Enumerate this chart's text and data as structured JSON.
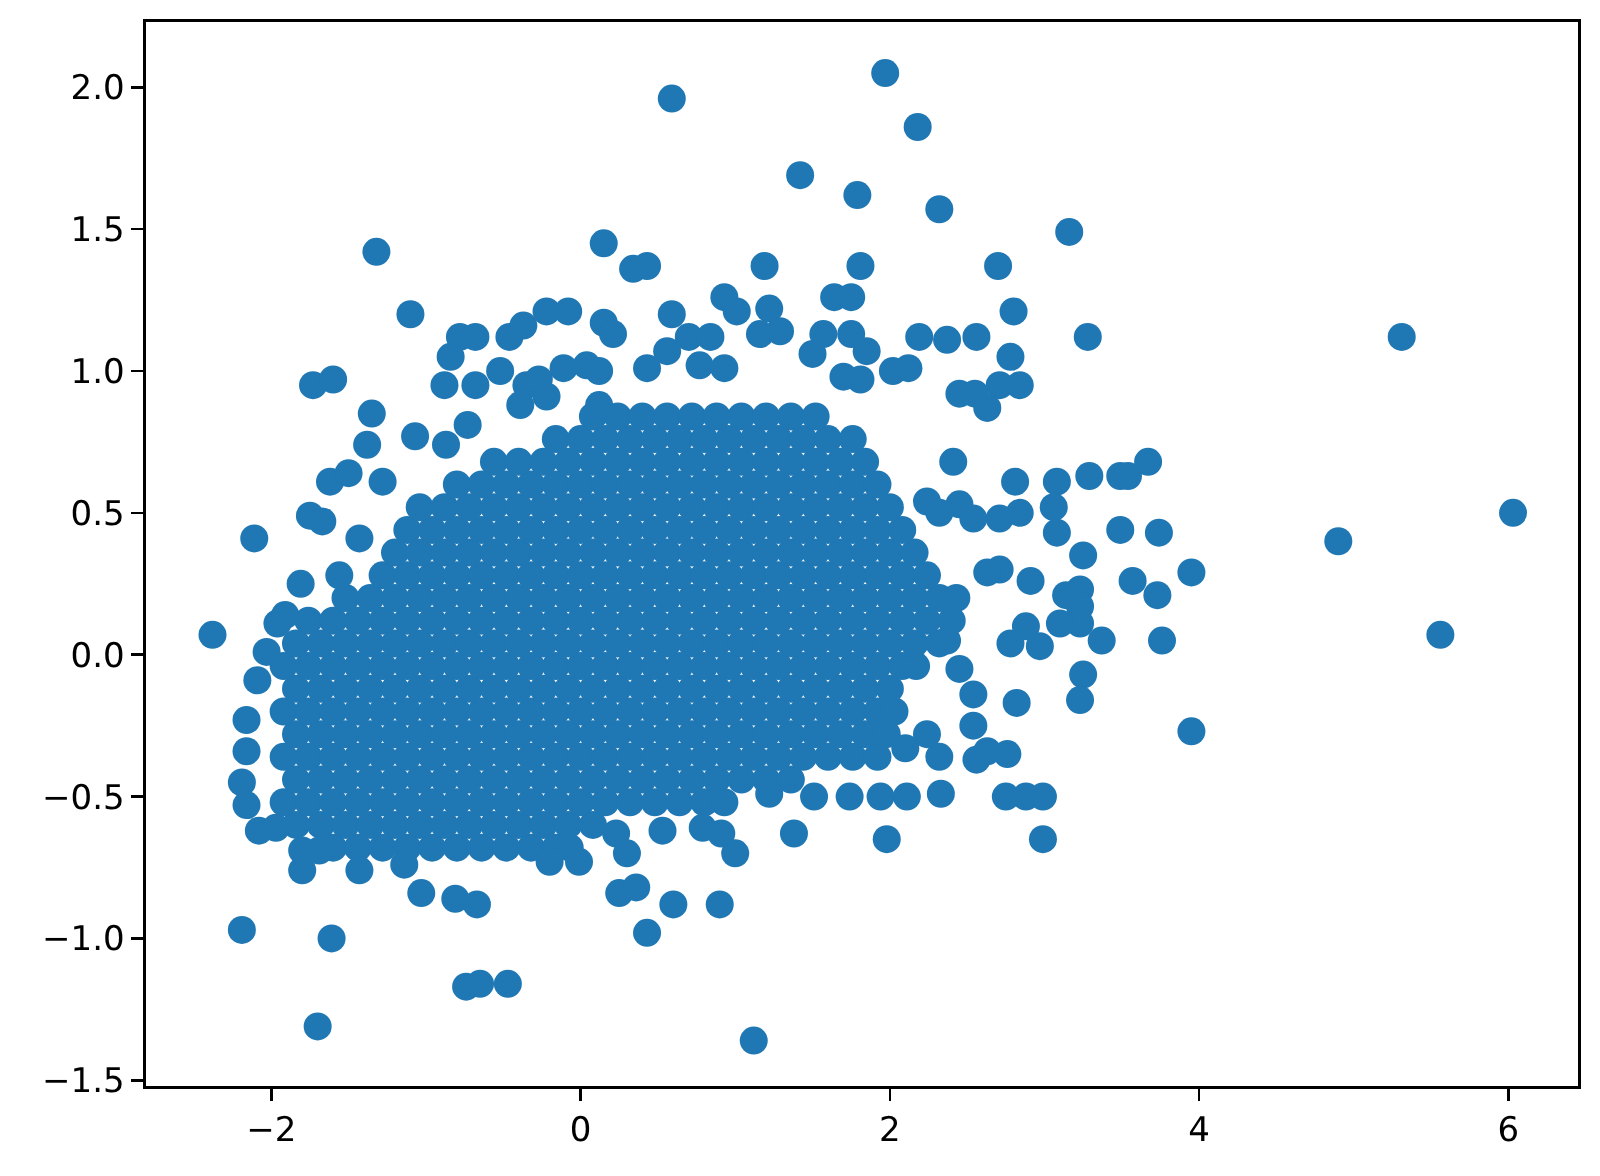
{
  "chart_data": {
    "type": "scatter",
    "color": "#1f77b4",
    "marker": "circle",
    "grid": false,
    "xlim": [
      -2.81,
      6.45
    ],
    "ylim": [
      -1.52,
      2.23
    ],
    "xticks": [
      {
        "value": -2,
        "label": "−2"
      },
      0,
      2,
      4,
      6
    ],
    "yticks": [
      {
        "value": -1.5,
        "label": "−1.5"
      },
      {
        "value": -1,
        "label": "−1.0"
      },
      {
        "value": -0.5,
        "label": "−0.5"
      },
      {
        "value": 0,
        "label": "0.0"
      },
      0.5,
      {
        "value": 1,
        "label": "1.0"
      },
      1.5,
      {
        "value": 2,
        "label": "2.0"
      }
    ],
    "x": [
      -1.6,
      -1.44,
      -1.28,
      -1.12,
      -0.96,
      -0.8,
      -0.64,
      -0.48,
      -0.32,
      -0.16,
      -0.07,
      -1.84,
      -1.68,
      -1.52,
      -1.36,
      -1.2,
      -1.04,
      -0.88,
      -0.72,
      -0.56,
      -0.4,
      -0.24,
      -0.08,
      0.08,
      -1.92,
      -1.76,
      -1.6,
      -1.44,
      -1.28,
      -1.12,
      -0.96,
      -0.8,
      -0.64,
      -0.48,
      -0.32,
      -0.16,
      0,
      0.16,
      0.32,
      0.48,
      0.64,
      0.8,
      0.93,
      -1.84,
      -1.68,
      -1.52,
      -1.36,
      -1.2,
      -1.04,
      -0.88,
      -0.72,
      -0.56,
      -0.4,
      -0.24,
      -0.08,
      0.08,
      0.24,
      0.4,
      0.56,
      0.72,
      0.88,
      1.04,
      1.2,
      1.36,
      -1.92,
      -1.76,
      -1.6,
      -1.44,
      -1.28,
      -1.12,
      -0.96,
      -0.8,
      -0.64,
      -0.48,
      -0.32,
      -0.16,
      0,
      0.16,
      0.32,
      0.48,
      0.64,
      0.8,
      0.96,
      1.12,
      1.28,
      1.44,
      1.6,
      1.76,
      1.92,
      -1.84,
      -1.68,
      -1.52,
      -1.36,
      -1.2,
      -1.04,
      -0.88,
      -0.72,
      -0.56,
      -0.4,
      -0.24,
      -0.08,
      0.08,
      0.24,
      0.4,
      0.56,
      0.72,
      0.88,
      1.04,
      1.2,
      1.36,
      1.52,
      1.68,
      1.84,
      1.98,
      -1.92,
      -1.76,
      -1.6,
      -1.44,
      -1.28,
      -1.12,
      -0.96,
      -0.8,
      -0.64,
      -0.48,
      -0.32,
      -0.16,
      0,
      0.16,
      0.32,
      0.48,
      0.64,
      0.8,
      0.96,
      1.12,
      1.28,
      1.44,
      1.6,
      1.76,
      1.92,
      2.03,
      -1.84,
      -1.68,
      -1.52,
      -1.36,
      -1.2,
      -1.04,
      -0.88,
      -0.72,
      -0.56,
      -0.4,
      -0.24,
      -0.08,
      0.08,
      0.24,
      0.4,
      0.56,
      0.72,
      0.88,
      1.04,
      1.2,
      1.36,
      1.52,
      1.68,
      1.84,
      2,
      -1.92,
      -1.76,
      -1.6,
      -1.44,
      -1.28,
      -1.12,
      -0.96,
      -0.8,
      -0.64,
      -0.48,
      -0.32,
      -0.16,
      0,
      0.16,
      0.32,
      0.48,
      0.64,
      0.8,
      0.96,
      1.12,
      1.28,
      1.44,
      1.6,
      1.76,
      1.92,
      2.08,
      2.17,
      -1.84,
      -1.68,
      -1.52,
      -1.36,
      -1.2,
      -1.04,
      -0.88,
      -0.72,
      -0.56,
      -0.4,
      -0.24,
      -0.08,
      0.08,
      0.24,
      0.4,
      0.56,
      0.72,
      0.88,
      1.04,
      1.2,
      1.36,
      1.52,
      1.68,
      1.84,
      2,
      2.16,
      2.32,
      -1.76,
      -1.6,
      -1.44,
      -1.28,
      -1.12,
      -0.96,
      -0.8,
      -0.64,
      -0.48,
      -0.32,
      -0.16,
      0,
      0.16,
      0.32,
      0.48,
      0.64,
      0.8,
      0.96,
      1.12,
      1.28,
      1.44,
      1.6,
      1.76,
      1.92,
      2.08,
      2.24,
      2.4,
      -1.52,
      -1.36,
      -1.2,
      -1.04,
      -0.88,
      -0.72,
      -0.56,
      -0.4,
      -0.24,
      -0.08,
      0.08,
      0.24,
      0.4,
      0.56,
      0.72,
      0.88,
      1.04,
      1.2,
      1.36,
      1.52,
      1.68,
      1.84,
      2,
      2.16,
      2.32,
      2.43,
      -1.28,
      -1.12,
      -0.96,
      -0.8,
      -0.64,
      -0.48,
      -0.32,
      -0.16,
      0,
      0.16,
      0.32,
      0.48,
      0.64,
      0.8,
      0.96,
      1.12,
      1.28,
      1.44,
      1.6,
      1.76,
      1.92,
      2.08,
      2.24,
      -1.2,
      -1.04,
      -0.88,
      -0.72,
      -0.56,
      -0.4,
      -0.24,
      -0.08,
      0.08,
      0.24,
      0.4,
      0.56,
      0.72,
      0.88,
      1.04,
      1.2,
      1.36,
      1.52,
      1.68,
      1.84,
      2,
      2.16,
      -1.12,
      -0.96,
      -0.8,
      -0.64,
      -0.48,
      -0.32,
      -0.16,
      0,
      0.16,
      0.32,
      0.48,
      0.64,
      0.8,
      0.96,
      1.12,
      1.28,
      1.44,
      1.6,
      1.76,
      1.92,
      2.08,
      -1.04,
      -0.88,
      -0.72,
      -0.56,
      -0.4,
      -0.24,
      -0.08,
      0.08,
      0.24,
      0.4,
      0.56,
      0.72,
      0.88,
      1.04,
      1.2,
      1.36,
      1.52,
      1.68,
      1.84,
      2,
      -0.8,
      -0.64,
      -0.48,
      -0.32,
      -0.16,
      0,
      0.16,
      0.32,
      0.48,
      0.64,
      0.8,
      0.96,
      1.12,
      1.28,
      1.44,
      1.6,
      1.76,
      1.92,
      -0.56,
      -0.4,
      -0.24,
      -0.08,
      0.08,
      0.24,
      0.4,
      0.56,
      0.72,
      0.88,
      1.04,
      1.2,
      1.36,
      1.52,
      1.68,
      1.84,
      -0.16,
      0,
      0.16,
      0.32,
      0.48,
      0.64,
      0.8,
      0.96,
      1.12,
      1.28,
      1.44,
      1.6,
      1.76,
      0.08,
      0.24,
      0.4,
      0.56,
      0.72,
      0.88,
      1.04,
      1.2,
      1.36,
      1.52,
      -1.32,
      -1.1,
      -0.78,
      -0.68,
      -0.84,
      -0.46,
      -0.37,
      -0.22,
      -0.08,
      0.15,
      0.34,
      0.15,
      0.21,
      -0.88,
      -0.68,
      -0.52,
      -1.73,
      -1.6,
      -1.35,
      -1.38,
      -1.07,
      -0.73,
      -1.62,
      -1.5,
      -1.75,
      -1.67,
      -2.11,
      -1.81,
      -1.43,
      -1.56,
      -1.28,
      -0.87,
      -0.35,
      -0.27,
      -0.11,
      0.04,
      0.12,
      -0.39,
      -0.22,
      0.12,
      1.97,
      0.59,
      2.18,
      1.42,
      1.79,
      2.32,
      3.16,
      0.43,
      1.19,
      1.81,
      2.7,
      0.93,
      1.01,
      1.22,
      1.64,
      1.75,
      2.8,
      0.59,
      2.19,
      2.37,
      2.56,
      3.28,
      2.78,
      2.71,
      2.84,
      2.45,
      2.55,
      2.63,
      2.02,
      2.12,
      1.57,
      1.75,
      1.85,
      1.5,
      1.7,
      1.81,
      0.7,
      0.84,
      0.43,
      0.56,
      0.77,
      0.93,
      1.16,
      1.29,
      2.41,
      2.81,
      3.08,
      3.29,
      3.49,
      2.45,
      2.24,
      3.06,
      2.84,
      2.71,
      2.54,
      2.32,
      3.08,
      3.25,
      3.49,
      2.91,
      3.23,
      3.14,
      2.71,
      2.63,
      5.31,
      3.54,
      3.67,
      3.74,
      4.9,
      6.03,
      3.57,
      3.73,
      3.95,
      3.23,
      3.23,
      3.37,
      3.76,
      5.56,
      3.25,
      3.23,
      3.95,
      3.1,
      2.97,
      2.78,
      2.88,
      2.82,
      2.76,
      2.56,
      2.63,
      2.75,
      2.88,
      2.99,
      2.99,
      2.33,
      1.98,
      1.38,
      1.22,
      1.51,
      1.74,
      1.94,
      2.11,
      2.32,
      2.54,
      2.54,
      2.45,
      2.37,
      2.1,
      2.24,
      0.9,
      0.6,
      0.43,
      0.25,
      0.36,
      1.12,
      1,
      0.91,
      0.79,
      0.53,
      0.23,
      0.3,
      -2.38,
      -2.03,
      -1.96,
      -1.91,
      -2.09,
      -2.16,
      -2.16,
      -2.19,
      -2.16,
      -2.08,
      -1.97,
      -1.8,
      -1.43,
      -1.14,
      -1.03,
      -0.81,
      -0.67,
      -2.19,
      -1.61,
      -0.74,
      -0.65,
      -0.47,
      -1.7,
      -0.2,
      -0.01,
      -1.8,
      -1.69
    ],
    "values": [
      -0.68,
      -0.68,
      -0.68,
      -0.68,
      -0.68,
      -0.68,
      -0.68,
      -0.68,
      -0.68,
      -0.68,
      -0.68,
      -0.6,
      -0.6,
      -0.6,
      -0.6,
      -0.6,
      -0.6,
      -0.6,
      -0.6,
      -0.6,
      -0.6,
      -0.6,
      -0.6,
      -0.6,
      -0.52,
      -0.52,
      -0.52,
      -0.52,
      -0.52,
      -0.52,
      -0.52,
      -0.52,
      -0.52,
      -0.52,
      -0.52,
      -0.52,
      -0.52,
      -0.52,
      -0.52,
      -0.52,
      -0.52,
      -0.52,
      -0.52,
      -0.44,
      -0.44,
      -0.44,
      -0.44,
      -0.44,
      -0.44,
      -0.44,
      -0.44,
      -0.44,
      -0.44,
      -0.44,
      -0.44,
      -0.44,
      -0.44,
      -0.44,
      -0.44,
      -0.44,
      -0.44,
      -0.44,
      -0.44,
      -0.44,
      -0.36,
      -0.36,
      -0.36,
      -0.36,
      -0.36,
      -0.36,
      -0.36,
      -0.36,
      -0.36,
      -0.36,
      -0.36,
      -0.36,
      -0.36,
      -0.36,
      -0.36,
      -0.36,
      -0.36,
      -0.36,
      -0.36,
      -0.36,
      -0.36,
      -0.36,
      -0.36,
      -0.36,
      -0.36,
      -0.28,
      -0.28,
      -0.28,
      -0.28,
      -0.28,
      -0.28,
      -0.28,
      -0.28,
      -0.28,
      -0.28,
      -0.28,
      -0.28,
      -0.28,
      -0.28,
      -0.28,
      -0.28,
      -0.28,
      -0.28,
      -0.28,
      -0.28,
      -0.28,
      -0.28,
      -0.28,
      -0.28,
      -0.28,
      -0.2,
      -0.2,
      -0.2,
      -0.2,
      -0.2,
      -0.2,
      -0.2,
      -0.2,
      -0.2,
      -0.2,
      -0.2,
      -0.2,
      -0.2,
      -0.2,
      -0.2,
      -0.2,
      -0.2,
      -0.2,
      -0.2,
      -0.2,
      -0.2,
      -0.2,
      -0.2,
      -0.2,
      -0.2,
      -0.2,
      -0.12,
      -0.12,
      -0.12,
      -0.12,
      -0.12,
      -0.12,
      -0.12,
      -0.12,
      -0.12,
      -0.12,
      -0.12,
      -0.12,
      -0.12,
      -0.12,
      -0.12,
      -0.12,
      -0.12,
      -0.12,
      -0.12,
      -0.12,
      -0.12,
      -0.12,
      -0.12,
      -0.12,
      -0.12,
      -0.04,
      -0.04,
      -0.04,
      -0.04,
      -0.04,
      -0.04,
      -0.04,
      -0.04,
      -0.04,
      -0.04,
      -0.04,
      -0.04,
      -0.04,
      -0.04,
      -0.04,
      -0.04,
      -0.04,
      -0.04,
      -0.04,
      -0.04,
      -0.04,
      -0.04,
      -0.04,
      -0.04,
      -0.04,
      -0.04,
      -0.04,
      0.04,
      0.04,
      0.04,
      0.04,
      0.04,
      0.04,
      0.04,
      0.04,
      0.04,
      0.04,
      0.04,
      0.04,
      0.04,
      0.04,
      0.04,
      0.04,
      0.04,
      0.04,
      0.04,
      0.04,
      0.04,
      0.04,
      0.04,
      0.04,
      0.04,
      0.04,
      0.04,
      0.12,
      0.12,
      0.12,
      0.12,
      0.12,
      0.12,
      0.12,
      0.12,
      0.12,
      0.12,
      0.12,
      0.12,
      0.12,
      0.12,
      0.12,
      0.12,
      0.12,
      0.12,
      0.12,
      0.12,
      0.12,
      0.12,
      0.12,
      0.12,
      0.12,
      0.12,
      0.12,
      0.2,
      0.2,
      0.2,
      0.2,
      0.2,
      0.2,
      0.2,
      0.2,
      0.2,
      0.2,
      0.2,
      0.2,
      0.2,
      0.2,
      0.2,
      0.2,
      0.2,
      0.2,
      0.2,
      0.2,
      0.2,
      0.2,
      0.2,
      0.2,
      0.2,
      0.2,
      0.28,
      0.28,
      0.28,
      0.28,
      0.28,
      0.28,
      0.28,
      0.28,
      0.28,
      0.28,
      0.28,
      0.28,
      0.28,
      0.28,
      0.28,
      0.28,
      0.28,
      0.28,
      0.28,
      0.28,
      0.28,
      0.28,
      0.28,
      0.36,
      0.36,
      0.36,
      0.36,
      0.36,
      0.36,
      0.36,
      0.36,
      0.36,
      0.36,
      0.36,
      0.36,
      0.36,
      0.36,
      0.36,
      0.36,
      0.36,
      0.36,
      0.36,
      0.36,
      0.36,
      0.36,
      0.44,
      0.44,
      0.44,
      0.44,
      0.44,
      0.44,
      0.44,
      0.44,
      0.44,
      0.44,
      0.44,
      0.44,
      0.44,
      0.44,
      0.44,
      0.44,
      0.44,
      0.44,
      0.44,
      0.44,
      0.44,
      0.52,
      0.52,
      0.52,
      0.52,
      0.52,
      0.52,
      0.52,
      0.52,
      0.52,
      0.52,
      0.52,
      0.52,
      0.52,
      0.52,
      0.52,
      0.52,
      0.52,
      0.52,
      0.52,
      0.52,
      0.6,
      0.6,
      0.6,
      0.6,
      0.6,
      0.6,
      0.6,
      0.6,
      0.6,
      0.6,
      0.6,
      0.6,
      0.6,
      0.6,
      0.6,
      0.6,
      0.6,
      0.6,
      0.68,
      0.68,
      0.68,
      0.68,
      0.68,
      0.68,
      0.68,
      0.68,
      0.68,
      0.68,
      0.68,
      0.68,
      0.68,
      0.68,
      0.68,
      0.68,
      0.76,
      0.76,
      0.76,
      0.76,
      0.76,
      0.76,
      0.76,
      0.76,
      0.76,
      0.76,
      0.76,
      0.76,
      0.76,
      0.84,
      0.84,
      0.84,
      0.84,
      0.84,
      0.84,
      0.84,
      0.84,
      0.84,
      0.84,
      1.42,
      1.2,
      1.12,
      1.12,
      1.05,
      1.12,
      1.16,
      1.21,
      1.21,
      1.45,
      1.36,
      1.17,
      1.13,
      0.95,
      0.95,
      1,
      0.95,
      0.97,
      0.85,
      0.74,
      0.77,
      0.81,
      0.61,
      0.64,
      0.49,
      0.47,
      0.41,
      0.25,
      0.41,
      0.28,
      0.61,
      0.74,
      0.95,
      0.97,
      1.01,
      1.02,
      1,
      0.88,
      0.91,
      0.88,
      2.05,
      1.96,
      1.86,
      1.69,
      1.62,
      1.57,
      1.49,
      1.37,
      1.37,
      1.37,
      1.37,
      1.26,
      1.21,
      1.22,
      1.26,
      1.26,
      1.21,
      1.2,
      1.12,
      1.11,
      1.12,
      1.12,
      1.05,
      0.95,
      0.95,
      0.92,
      0.92,
      0.87,
      1,
      1.01,
      1.13,
      1.13,
      1.07,
      1.06,
      0.98,
      0.97,
      1.12,
      1.12,
      1.01,
      1.07,
      1.02,
      1.01,
      1.13,
      1.14,
      0.68,
      0.61,
      0.61,
      0.63,
      0.63,
      0.53,
      0.54,
      0.52,
      0.5,
      0.48,
      0.48,
      0.5,
      0.43,
      0.35,
      0.44,
      0.26,
      0.23,
      0.21,
      0.3,
      0.29,
      1.12,
      0.63,
      0.68,
      0.43,
      0.4,
      0.5,
      0.26,
      0.21,
      0.29,
      0.17,
      0.11,
      0.05,
      0.05,
      0.07,
      -0.07,
      -0.16,
      -0.27,
      0.11,
      0.03,
      0.04,
      0.1,
      -0.17,
      -0.35,
      -0.37,
      -0.34,
      -0.5,
      -0.5,
      -0.5,
      -0.65,
      -0.49,
      -0.65,
      -0.63,
      -0.49,
      -0.5,
      -0.5,
      -0.5,
      -0.5,
      -0.36,
      -0.25,
      -0.14,
      -0.05,
      0.05,
      -0.33,
      -0.28,
      -0.88,
      -0.88,
      -0.98,
      -0.84,
      -0.82,
      -1.36,
      -0.7,
      -0.63,
      -0.61,
      -0.62,
      -0.63,
      -0.7,
      0.07,
      0.01,
      0.11,
      0.14,
      -0.09,
      -0.23,
      -0.34,
      -0.45,
      -0.53,
      -0.62,
      -0.61,
      -0.76,
      -0.76,
      -0.74,
      -0.84,
      -0.86,
      -0.88,
      -0.97,
      -1,
      -1.17,
      -1.16,
      -1.16,
      -1.31,
      -0.73,
      -0.73,
      -0.69,
      -0.69
    ]
  }
}
